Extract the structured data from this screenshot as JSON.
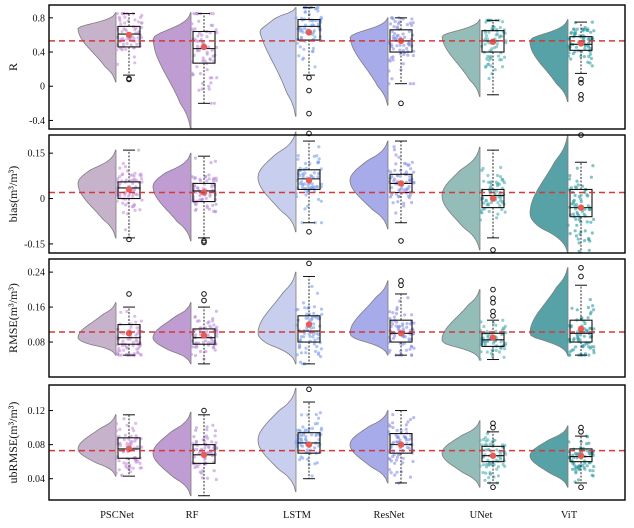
{
  "figure_title": "",
  "chart_data": [
    {
      "type": "raincloud",
      "ylabel": "R",
      "ylim": [
        -0.5,
        0.95
      ],
      "yticks": [
        -0.4,
        0,
        0.4,
        0.8
      ],
      "ytick_labels": [
        "-0.4",
        "0",
        "0.4",
        "0.8"
      ],
      "reference_line": 0.53,
      "categories": [
        "PSCNet",
        "RF",
        "LSTM",
        "ResNet",
        "UNet",
        "ViT"
      ],
      "series": [
        {
          "name": "PSCNet",
          "q1": 0.46,
          "median": 0.61,
          "q3": 0.7,
          "whisker_low": 0.13,
          "whisker_high": 0.85,
          "mean": 0.6,
          "outliers": [
            0.08,
            0.09
          ],
          "kde_range": [
            0.05,
            0.86
          ],
          "kde_mode": 0.68
        },
        {
          "name": "RF",
          "q1": 0.27,
          "median": 0.44,
          "q3": 0.64,
          "whisker_low": -0.2,
          "whisker_high": 0.85,
          "mean": 0.46,
          "outliers": [],
          "kde_range": [
            -0.5,
            0.86
          ],
          "kde_mode": 0.58
        },
        {
          "name": "LSTM",
          "q1": 0.54,
          "median": 0.7,
          "q3": 0.78,
          "whisker_low": 0.13,
          "whisker_high": 0.92,
          "mean": 0.63,
          "outliers": [
            0.1,
            -0.05,
            -0.32
          ],
          "kde_range": [
            -0.35,
            0.92
          ],
          "kde_mode": 0.8
        },
        {
          "name": "ResNet",
          "q1": 0.4,
          "median": 0.53,
          "q3": 0.66,
          "whisker_low": 0.03,
          "whisker_high": 0.8,
          "mean": 0.53,
          "outliers": [
            -0.2
          ],
          "kde_range": [
            -0.22,
            0.8
          ],
          "kde_mode": 0.6
        },
        {
          "name": "UNet",
          "q1": 0.4,
          "median": 0.53,
          "q3": 0.65,
          "whisker_low": -0.1,
          "whisker_high": 0.77,
          "mean": 0.52,
          "outliers": [],
          "kde_range": [
            -0.12,
            0.78
          ],
          "kde_mode": 0.6
        },
        {
          "name": "ViT",
          "q1": 0.42,
          "median": 0.49,
          "q3": 0.58,
          "whisker_low": 0.15,
          "whisker_high": 0.75,
          "mean": 0.5,
          "outliers": [
            0.08,
            0.04,
            -0.1,
            -0.15
          ],
          "kde_range": [
            -0.18,
            0.78
          ],
          "kde_mode": 0.52
        }
      ]
    },
    {
      "type": "raincloud",
      "ylabel": "bias(m³/m³)",
      "ylim": [
        -0.18,
        0.21
      ],
      "yticks": [
        -0.15,
        0,
        0.15
      ],
      "ytick_labels": [
        "-0.15",
        "0",
        "0.15"
      ],
      "reference_line": 0.02,
      "categories": [
        "PSCNet",
        "RF",
        "LSTM",
        "ResNet",
        "UNet",
        "ViT"
      ],
      "series": [
        {
          "name": "PSCNet",
          "q1": 0.0,
          "median": 0.035,
          "q3": 0.055,
          "whisker_low": -0.13,
          "whisker_high": 0.16,
          "mean": 0.03,
          "outliers": [
            -0.135
          ],
          "kde_range": [
            -0.13,
            0.16
          ],
          "kde_mode": 0.05
        },
        {
          "name": "RF",
          "q1": -0.01,
          "median": 0.025,
          "q3": 0.05,
          "whisker_low": -0.13,
          "whisker_high": 0.14,
          "mean": 0.02,
          "outliers": [
            -0.14,
            -0.145
          ],
          "kde_range": [
            -0.14,
            0.15
          ],
          "kde_mode": 0.04
        },
        {
          "name": "LSTM",
          "q1": 0.03,
          "median": 0.065,
          "q3": 0.095,
          "whisker_low": -0.08,
          "whisker_high": 0.19,
          "mean": 0.06,
          "outliers": [
            -0.11,
            0.215
          ],
          "kde_range": [
            -0.11,
            0.22
          ],
          "kde_mode": 0.07
        },
        {
          "name": "ResNet",
          "q1": 0.02,
          "median": 0.05,
          "q3": 0.08,
          "whisker_low": -0.08,
          "whisker_high": 0.19,
          "mean": 0.05,
          "outliers": [
            -0.14
          ],
          "kde_range": [
            -0.1,
            0.19
          ],
          "kde_mode": 0.06
        },
        {
          "name": "UNet",
          "q1": -0.03,
          "median": 0.01,
          "q3": 0.03,
          "whisker_low": -0.13,
          "whisker_high": 0.16,
          "mean": 0.0,
          "outliers": [
            -0.17
          ],
          "kde_range": [
            -0.17,
            0.17
          ],
          "kde_mode": 0.01
        },
        {
          "name": "ViT",
          "q1": -0.06,
          "median": -0.03,
          "q3": 0.03,
          "whisker_low": -0.18,
          "whisker_high": 0.12,
          "mean": -0.03,
          "outliers": [
            0.21
          ],
          "kde_range": [
            -0.18,
            0.21
          ],
          "kde_mode": -0.05
        }
      ]
    },
    {
      "type": "raincloud",
      "ylabel": "RMSE(m³/m³)",
      "ylim": [
        0.0,
        0.27
      ],
      "yticks": [
        0.08,
        0.16,
        0.24
      ],
      "ytick_labels": [
        "0.08",
        "0.16",
        "0.24"
      ],
      "reference_line": 0.103,
      "categories": [
        "PSCNet",
        "RF",
        "LSTM",
        "ResNet",
        "UNet",
        "ViT"
      ],
      "series": [
        {
          "name": "PSCNet",
          "q1": 0.075,
          "median": 0.09,
          "q3": 0.12,
          "whisker_low": 0.05,
          "whisker_high": 0.16,
          "mean": 0.1,
          "outliers": [
            0.19
          ],
          "kde_range": [
            0.05,
            0.17
          ],
          "kde_mode": 0.09
        },
        {
          "name": "RF",
          "q1": 0.075,
          "median": 0.09,
          "q3": 0.11,
          "whisker_low": 0.03,
          "whisker_high": 0.16,
          "mean": 0.095,
          "outliers": [
            0.175,
            0.19
          ],
          "kde_range": [
            0.03,
            0.17
          ],
          "kde_mode": 0.09
        },
        {
          "name": "LSTM",
          "q1": 0.08,
          "median": 0.105,
          "q3": 0.14,
          "whisker_low": 0.03,
          "whisker_high": 0.23,
          "mean": 0.12,
          "outliers": [
            0.26
          ],
          "kde_range": [
            0.03,
            0.24
          ],
          "kde_mode": 0.1
        },
        {
          "name": "ResNet",
          "q1": 0.08,
          "median": 0.1,
          "q3": 0.13,
          "whisker_low": 0.05,
          "whisker_high": 0.19,
          "mean": 0.1,
          "outliers": [
            0.21,
            0.22
          ],
          "kde_range": [
            0.05,
            0.22
          ],
          "kde_mode": 0.1
        },
        {
          "name": "UNet",
          "q1": 0.07,
          "median": 0.085,
          "q3": 0.1,
          "whisker_low": 0.04,
          "whisker_high": 0.13,
          "mean": 0.09,
          "outliers": [
            0.14,
            0.15,
            0.17,
            0.18,
            0.2
          ],
          "kde_range": [
            0.04,
            0.2
          ],
          "kde_mode": 0.085
        },
        {
          "name": "ViT",
          "q1": 0.08,
          "median": 0.1,
          "q3": 0.13,
          "whisker_low": 0.05,
          "whisker_high": 0.21,
          "mean": 0.11,
          "outliers": [
            0.23,
            0.25
          ],
          "kde_range": [
            0.05,
            0.25
          ],
          "kde_mode": 0.1
        }
      ]
    },
    {
      "type": "raincloud",
      "ylabel": "ubRMSE(m³/m³)",
      "ylim": [
        0.015,
        0.15
      ],
      "yticks": [
        0.04,
        0.08,
        0.12
      ],
      "ytick_labels": [
        "0.04",
        "0.08",
        "0.12"
      ],
      "reference_line": 0.073,
      "categories": [
        "PSCNet",
        "RF",
        "LSTM",
        "ResNet",
        "UNet",
        "ViT"
      ],
      "series": [
        {
          "name": "PSCNet",
          "q1": 0.064,
          "median": 0.075,
          "q3": 0.088,
          "whisker_low": 0.043,
          "whisker_high": 0.115,
          "mean": 0.075,
          "outliers": [],
          "kde_range": [
            0.043,
            0.115
          ],
          "kde_mode": 0.075
        },
        {
          "name": "RF",
          "q1": 0.058,
          "median": 0.068,
          "q3": 0.08,
          "whisker_low": 0.02,
          "whisker_high": 0.115,
          "mean": 0.068,
          "outliers": [
            0.12
          ],
          "kde_range": [
            0.02,
            0.118
          ],
          "kde_mode": 0.07
        },
        {
          "name": "LSTM",
          "q1": 0.07,
          "median": 0.082,
          "q3": 0.094,
          "whisker_low": 0.04,
          "whisker_high": 0.13,
          "mean": 0.08,
          "outliers": [
            0.145
          ],
          "kde_range": [
            0.025,
            0.146
          ],
          "kde_mode": 0.085
        },
        {
          "name": "ResNet",
          "q1": 0.07,
          "median": 0.08,
          "q3": 0.093,
          "whisker_low": 0.035,
          "whisker_high": 0.12,
          "mean": 0.08,
          "outliers": [],
          "kde_range": [
            0.035,
            0.12
          ],
          "kde_mode": 0.08
        },
        {
          "name": "UNet",
          "q1": 0.06,
          "median": 0.067,
          "q3": 0.078,
          "whisker_low": 0.035,
          "whisker_high": 0.095,
          "mean": 0.067,
          "outliers": [
            0.03,
            0.1,
            0.105
          ],
          "kde_range": [
            0.03,
            0.108
          ],
          "kde_mode": 0.07
        },
        {
          "name": "ViT",
          "q1": 0.06,
          "median": 0.066,
          "q3": 0.075,
          "whisker_low": 0.035,
          "whisker_high": 0.09,
          "mean": 0.067,
          "outliers": [
            0.03,
            0.095,
            0.1
          ],
          "kde_range": [
            0.03,
            0.102
          ],
          "kde_mode": 0.067
        }
      ]
    }
  ],
  "colors": {
    "PSCNet": "#c4afc9",
    "RF": "#bc97cf",
    "LSTM": "#c6cced",
    "ResNet": "#a3a7e8",
    "UNet": "#8fbab6",
    "ViT": "#4f9ea2",
    "PSCNet_dot": "#c792d8",
    "RF_dot": "#b98fd9",
    "LSTM_dot": "#7da0ec",
    "ResNet_dot": "#8a8fe6",
    "UNet_dot": "#52aeb2",
    "ViT_dot": "#2f9ba2",
    "mean_marker": "#e55d55",
    "reference_line": "#d23b3b",
    "axes": "#000000"
  }
}
